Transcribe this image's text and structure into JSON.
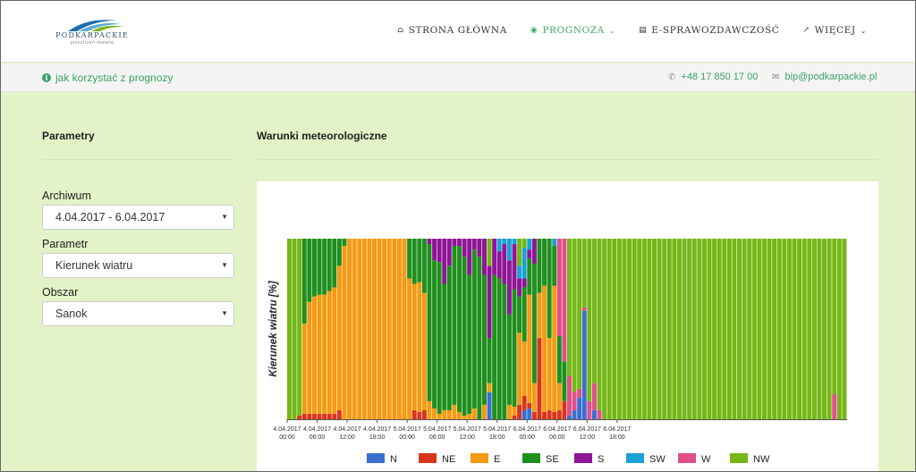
{
  "header": {
    "logo_text": "PODKARPACKIE",
    "logo_sub": "przestrzeń otwarta",
    "nav": [
      {
        "label": "STRONA GŁÓWNA",
        "icon": "home-icon",
        "active": false,
        "dropdown": false
      },
      {
        "label": "PROGNOZA",
        "icon": "eye-icon",
        "active": true,
        "dropdown": true
      },
      {
        "label": "E-SPRAWOZDAWCZOŚĆ",
        "icon": "document-icon",
        "active": false,
        "dropdown": false
      },
      {
        "label": "WIĘCEJ",
        "icon": "external-link-icon",
        "active": false,
        "dropdown": true
      }
    ]
  },
  "infobar": {
    "howto": "jak korzystać z prognozy",
    "phone": "+48 17 850 17 00",
    "email": "bip@podkarpackie.pl"
  },
  "sidebar": {
    "title": "Parametry",
    "fields": [
      {
        "label": "Archiwum",
        "value": "4.04.2017 - 6.04.2017"
      },
      {
        "label": "Parametr",
        "value": "Kierunek wiatru"
      },
      {
        "label": "Obszar",
        "value": "Sanok"
      }
    ]
  },
  "main": {
    "title": "Warunki meteorologiczne"
  },
  "colors": {
    "accent": "#3aa266",
    "background": "#e4f2c7",
    "N": "#3a6fd0",
    "NE": "#d9351c",
    "E": "#f59a12",
    "SE": "#1f8f1d",
    "S": "#8e1696",
    "SW": "#1ba1d6",
    "W": "#e04f89",
    "NW": "#74b716"
  },
  "chart_data": {
    "type": "bar",
    "stacked": true,
    "ylabel": "Kierunek wiatru [%]",
    "ylim": [
      0,
      100
    ],
    "legend_position": "bottom",
    "directions": [
      "N",
      "NE",
      "E",
      "SE",
      "S",
      "SW",
      "W",
      "NW"
    ],
    "x_ticks": [
      "4.04.2017 00:00",
      "4.04.2017 06:00",
      "4.04.2017 12:00",
      "4.04.2017 18:00",
      "5.04.2017 00:00",
      "5.04.2017 06:00",
      "5.04.2017 12:00",
      "5.04.2017 18:00",
      "6.04.2017 00:00",
      "6.04.2017 06:00",
      "6.04.2017 12:00",
      "6.04.2017 18:00"
    ],
    "hours_per_bar": 1,
    "bars": [
      [
        0,
        0,
        0,
        0,
        0,
        0,
        0,
        100
      ],
      [
        0,
        0,
        0,
        0,
        0,
        0,
        0,
        100
      ],
      [
        0,
        2,
        0,
        0,
        0,
        0,
        0,
        98
      ],
      [
        0,
        3,
        50,
        47,
        0,
        0,
        0,
        0
      ],
      [
        0,
        3,
        62,
        35,
        0,
        0,
        0,
        0
      ],
      [
        0,
        3,
        65,
        32,
        0,
        0,
        0,
        0
      ],
      [
        0,
        3,
        66,
        31,
        0,
        0,
        0,
        0
      ],
      [
        0,
        3,
        66,
        31,
        0,
        0,
        0,
        0
      ],
      [
        0,
        3,
        68,
        29,
        0,
        0,
        0,
        0
      ],
      [
        0,
        3,
        70,
        27,
        0,
        0,
        0,
        0
      ],
      [
        0,
        5,
        80,
        15,
        0,
        0,
        0,
        0
      ],
      [
        0,
        0,
        96,
        4,
        0,
        0,
        0,
        0
      ],
      [
        0,
        0,
        100,
        0,
        0,
        0,
        0,
        0
      ],
      [
        0,
        0,
        100,
        0,
        0,
        0,
        0,
        0
      ],
      [
        0,
        0,
        100,
        0,
        0,
        0,
        0,
        0
      ],
      [
        0,
        0,
        100,
        0,
        0,
        0,
        0,
        0
      ],
      [
        0,
        0,
        100,
        0,
        0,
        0,
        0,
        0
      ],
      [
        0,
        0,
        100,
        0,
        0,
        0,
        0,
        0
      ],
      [
        0,
        0,
        100,
        0,
        0,
        0,
        0,
        0
      ],
      [
        0,
        0,
        100,
        0,
        0,
        0,
        0,
        0
      ],
      [
        0,
        0,
        100,
        0,
        0,
        0,
        0,
        0
      ],
      [
        0,
        0,
        100,
        0,
        0,
        0,
        0,
        0
      ],
      [
        0,
        0,
        100,
        0,
        0,
        0,
        0,
        0
      ],
      [
        0,
        0,
        100,
        0,
        0,
        0,
        0,
        0
      ],
      [
        0,
        0,
        78,
        22,
        0,
        0,
        0,
        0
      ],
      [
        0,
        5,
        70,
        25,
        0,
        0,
        0,
        0
      ],
      [
        0,
        4,
        72,
        24,
        0,
        0,
        0,
        0
      ],
      [
        0,
        5,
        65,
        30,
        0,
        0,
        0,
        0
      ],
      [
        0,
        0,
        10,
        87,
        3,
        0,
        0,
        0
      ],
      [
        0,
        0,
        6,
        82,
        12,
        0,
        0,
        0
      ],
      [
        0,
        0,
        3,
        84,
        13,
        0,
        0,
        0
      ],
      [
        0,
        0,
        5,
        70,
        25,
        0,
        0,
        0
      ],
      [
        0,
        0,
        5,
        80,
        15,
        0,
        0,
        0
      ],
      [
        0,
        0,
        8,
        88,
        4,
        0,
        0,
        0
      ],
      [
        0,
        0,
        4,
        92,
        4,
        0,
        0,
        0
      ],
      [
        0,
        0,
        2,
        88,
        10,
        0,
        0,
        0
      ],
      [
        0,
        0,
        3,
        77,
        20,
        0,
        0,
        0
      ],
      [
        0,
        0,
        6,
        88,
        6,
        0,
        0,
        0
      ],
      [
        0,
        0,
        0,
        90,
        10,
        0,
        0,
        0
      ],
      [
        0,
        0,
        8,
        72,
        20,
        0,
        0,
        0
      ],
      [
        15,
        0,
        5,
        25,
        40,
        0,
        0,
        15
      ],
      [
        0,
        0,
        0,
        80,
        20,
        0,
        0,
        0
      ],
      [
        0,
        0,
        0,
        78,
        15,
        7,
        0,
        0
      ],
      [
        0,
        0,
        0,
        75,
        22,
        3,
        0,
        0
      ],
      [
        0,
        0,
        8,
        50,
        30,
        12,
        0,
        0
      ],
      [
        0,
        2,
        5,
        65,
        25,
        3,
        0,
        0
      ],
      [
        0,
        8,
        40,
        20,
        10,
        7,
        0,
        15
      ],
      [
        5,
        8,
        30,
        30,
        5,
        17,
        0,
        5
      ],
      [
        6,
        3,
        60,
        20,
        5,
        6,
        0,
        0
      ],
      [
        0,
        4,
        16,
        66,
        14,
        0,
        0,
        0
      ],
      [
        0,
        45,
        25,
        30,
        0,
        0,
        0,
        0
      ],
      [
        0,
        4,
        70,
        26,
        0,
        0,
        0,
        0
      ],
      [
        0,
        5,
        40,
        55,
        0,
        0,
        0,
        0
      ],
      [
        0,
        4,
        70,
        22,
        0,
        4,
        0,
        0
      ],
      [
        0,
        5,
        15,
        26,
        0,
        0,
        54,
        0
      ],
      [
        0,
        10,
        0,
        22,
        0,
        0,
        68,
        0
      ],
      [
        2,
        0,
        0,
        0,
        0,
        0,
        22,
        76
      ],
      [
        5,
        0,
        0,
        0,
        0,
        0,
        10,
        85
      ],
      [
        12,
        0,
        0,
        0,
        0,
        0,
        5,
        83
      ],
      [
        60,
        0,
        0,
        0,
        0,
        0,
        2,
        38
      ],
      [
        0,
        0,
        0,
        0,
        0,
        0,
        10,
        90
      ],
      [
        5,
        0,
        0,
        0,
        0,
        0,
        15,
        80
      ],
      [
        0,
        0,
        0,
        0,
        0,
        0,
        5,
        95
      ],
      [
        0,
        0,
        0,
        0,
        0,
        0,
        0,
        100
      ],
      [
        0,
        0,
        0,
        0,
        0,
        0,
        0,
        100
      ],
      [
        0,
        0,
        0,
        0,
        0,
        0,
        0,
        100
      ],
      [
        0,
        0,
        0,
        0,
        0,
        0,
        0,
        100
      ],
      [
        0,
        0,
        0,
        0,
        0,
        0,
        0,
        100
      ],
      [
        0,
        0,
        0,
        0,
        0,
        0,
        0,
        100
      ],
      [
        0,
        0,
        0,
        0,
        0,
        0,
        0,
        100
      ],
      [
        0,
        0,
        0,
        0,
        0,
        0,
        0,
        100
      ],
      [
        0,
        0,
        0,
        0,
        0,
        0,
        0,
        100
      ],
      [
        0,
        0,
        0,
        0,
        0,
        0,
        0,
        100
      ],
      [
        0,
        0,
        0,
        0,
        0,
        0,
        0,
        100
      ],
      [
        0,
        0,
        0,
        0,
        0,
        0,
        0,
        100
      ],
      [
        0,
        0,
        0,
        0,
        0,
        0,
        0,
        100
      ],
      [
        0,
        0,
        0,
        0,
        0,
        0,
        0,
        100
      ],
      [
        0,
        0,
        0,
        0,
        0,
        0,
        0,
        100
      ],
      [
        0,
        0,
        0,
        0,
        0,
        0,
        0,
        100
      ],
      [
        0,
        0,
        0,
        0,
        0,
        0,
        0,
        100
      ],
      [
        0,
        0,
        0,
        0,
        0,
        0,
        0,
        100
      ],
      [
        0,
        0,
        0,
        0,
        0,
        0,
        0,
        100
      ],
      [
        0,
        0,
        0,
        0,
        0,
        0,
        0,
        100
      ],
      [
        0,
        0,
        0,
        0,
        0,
        0,
        0,
        100
      ],
      [
        0,
        0,
        0,
        0,
        0,
        0,
        0,
        100
      ],
      [
        0,
        0,
        0,
        0,
        0,
        0,
        0,
        100
      ],
      [
        0,
        0,
        0,
        0,
        0,
        0,
        0,
        100
      ],
      [
        0,
        0,
        0,
        0,
        0,
        0,
        0,
        100
      ],
      [
        0,
        0,
        0,
        0,
        0,
        0,
        0,
        100
      ],
      [
        0,
        0,
        0,
        0,
        0,
        0,
        0,
        100
      ],
      [
        0,
        0,
        0,
        0,
        0,
        0,
        0,
        100
      ],
      [
        0,
        0,
        0,
        0,
        0,
        0,
        0,
        100
      ],
      [
        0,
        0,
        0,
        0,
        0,
        0,
        0,
        100
      ],
      [
        0,
        0,
        0,
        0,
        0,
        0,
        0,
        100
      ],
      [
        0,
        0,
        0,
        0,
        0,
        0,
        0,
        100
      ],
      [
        0,
        0,
        0,
        0,
        0,
        0,
        0,
        100
      ],
      [
        0,
        0,
        0,
        0,
        0,
        0,
        0,
        100
      ],
      [
        0,
        0,
        0,
        0,
        0,
        0,
        0,
        100
      ],
      [
        0,
        0,
        0,
        0,
        0,
        0,
        0,
        100
      ],
      [
        0,
        0,
        0,
        0,
        0,
        0,
        0,
        100
      ],
      [
        0,
        0,
        0,
        0,
        0,
        0,
        0,
        100
      ],
      [
        0,
        0,
        0,
        0,
        0,
        0,
        0,
        100
      ],
      [
        0,
        0,
        0,
        0,
        0,
        0,
        0,
        100
      ],
      [
        0,
        0,
        0,
        0,
        0,
        0,
        0,
        100
      ],
      [
        0,
        0,
        0,
        0,
        0,
        0,
        0,
        100
      ],
      [
        0,
        0,
        0,
        0,
        0,
        0,
        0,
        100
      ],
      [
        0,
        0,
        0,
        0,
        0,
        0,
        0,
        100
      ],
      [
        0,
        0,
        0,
        0,
        0,
        0,
        0,
        100
      ],
      [
        0,
        0,
        0,
        0,
        0,
        0,
        0,
        100
      ],
      [
        0,
        0,
        0,
        0,
        0,
        0,
        14,
        86
      ],
      [
        0,
        0,
        0,
        0,
        0,
        0,
        0,
        100
      ],
      [
        0,
        0,
        0,
        0,
        0,
        0,
        0,
        100
      ]
    ]
  }
}
